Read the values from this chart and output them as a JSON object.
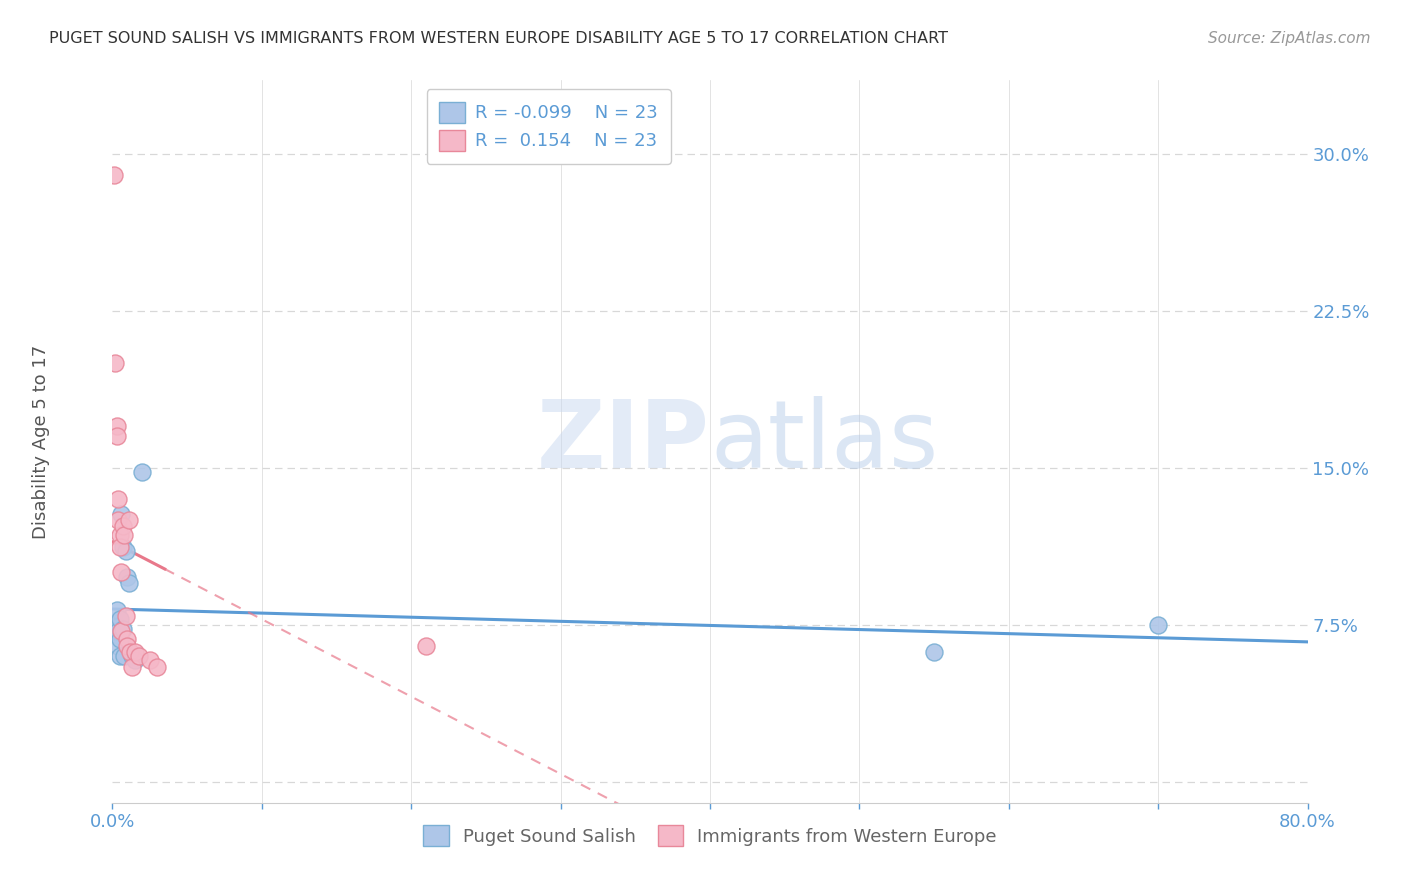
{
  "title": "PUGET SOUND SALISH VS IMMIGRANTS FROM WESTERN EUROPE DISABILITY AGE 5 TO 17 CORRELATION CHART",
  "source": "Source: ZipAtlas.com",
  "ylabel": "Disability Age 5 to 17",
  "xlim": [
    0.0,
    0.8
  ],
  "ylim": [
    -0.01,
    0.335
  ],
  "xticks": [
    0.0,
    0.1,
    0.2,
    0.3,
    0.4,
    0.5,
    0.6,
    0.7,
    0.8
  ],
  "yticks": [
    0.0,
    0.075,
    0.15,
    0.225,
    0.3
  ],
  "yticklabels": [
    "",
    "7.5%",
    "15.0%",
    "22.5%",
    "30.0%"
  ],
  "blue_R": -0.099,
  "blue_N": 23,
  "pink_R": 0.154,
  "pink_N": 23,
  "blue_scatter_x": [
    0.001,
    0.002,
    0.002,
    0.003,
    0.003,
    0.003,
    0.004,
    0.004,
    0.005,
    0.005,
    0.005,
    0.006,
    0.007,
    0.007,
    0.008,
    0.009,
    0.01,
    0.011,
    0.013,
    0.015,
    0.02,
    0.55,
    0.7
  ],
  "blue_scatter_y": [
    0.075,
    0.076,
    0.072,
    0.082,
    0.074,
    0.07,
    0.065,
    0.072,
    0.078,
    0.068,
    0.06,
    0.128,
    0.112,
    0.073,
    0.06,
    0.11,
    0.098,
    0.095,
    0.06,
    0.058,
    0.148,
    0.062,
    0.075
  ],
  "pink_scatter_x": [
    0.001,
    0.002,
    0.003,
    0.003,
    0.004,
    0.004,
    0.005,
    0.005,
    0.006,
    0.006,
    0.007,
    0.008,
    0.009,
    0.01,
    0.01,
    0.011,
    0.012,
    0.013,
    0.015,
    0.018,
    0.025,
    0.03,
    0.21
  ],
  "pink_scatter_y": [
    0.29,
    0.2,
    0.17,
    0.165,
    0.135,
    0.125,
    0.118,
    0.112,
    0.1,
    0.072,
    0.122,
    0.118,
    0.079,
    0.068,
    0.065,
    0.125,
    0.062,
    0.055,
    0.062,
    0.06,
    0.058,
    0.055,
    0.065
  ],
  "blue_line_color": "#5b9bd5",
  "pink_line_color": "#e8788a",
  "blue_dot_facecolor": "#aec6e8",
  "pink_dot_facecolor": "#f5b8c8",
  "blue_dot_edge": "#7aafd4",
  "pink_dot_edge": "#e8889a",
  "bg_color": "#ffffff",
  "grid_color": "#d8d8d8",
  "axis_tick_color": "#5b9bd5",
  "title_color": "#333333",
  "watermark_color": "#c8d8ee",
  "legend_r_color": "#5b9bd5",
  "bottom_legend_color": "#666666"
}
